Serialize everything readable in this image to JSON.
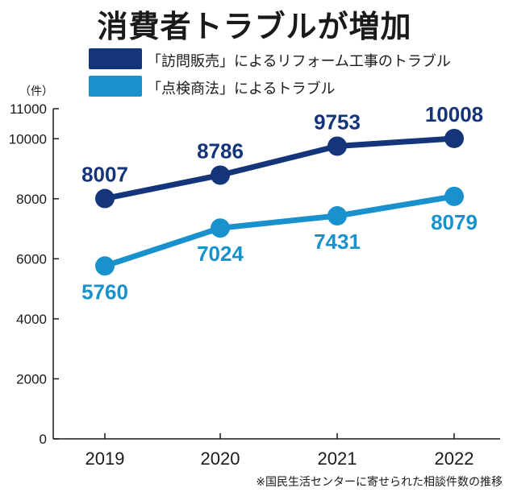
{
  "chart_data": {
    "type": "line",
    "title": "消費者トラブルが増加",
    "unit_label": "（件）",
    "x": [
      "2019",
      "2020",
      "2021",
      "2022"
    ],
    "ylim": [
      0,
      11000
    ],
    "yticks": [
      0,
      2000,
      4000,
      6000,
      8000,
      10000,
      11000
    ],
    "grid": false,
    "legend_position": "top",
    "series": [
      {
        "name": "「訪問販売」によるリフォーム工事のトラブル",
        "values": [
          8007,
          8786,
          9753,
          10008
        ],
        "color": "#14357a",
        "label_position": "above"
      },
      {
        "name": "「点検商法」によるトラブル",
        "values": [
          5760,
          7024,
          7431,
          8079
        ],
        "color": "#1891cc",
        "label_position": "below"
      }
    ],
    "footnote": "※国民生活センターに寄せられた相談件数の推移"
  }
}
